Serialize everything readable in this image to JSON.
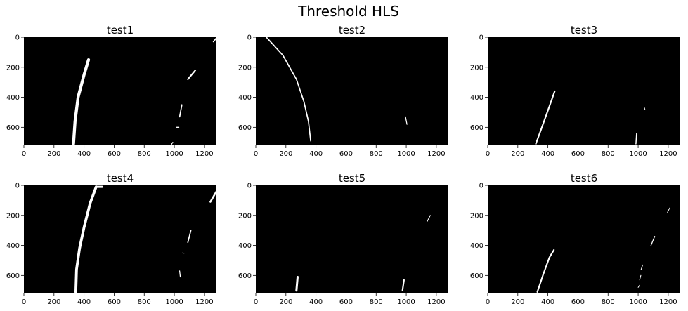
{
  "figure": {
    "suptitle": "Threshold HLS",
    "colors": {
      "background": "#000000",
      "foreground": "#ffffff",
      "text": "#000000"
    },
    "axes_common": {
      "xlim": [
        0,
        1280
      ],
      "ylim": [
        720,
        0
      ],
      "x_ticks": [
        0,
        200,
        400,
        600,
        800,
        1000,
        1200
      ],
      "y_ticks": [
        0,
        200,
        400,
        600
      ]
    },
    "panels": [
      {
        "title": "test1",
        "blobs": [
          {
            "shape": "stroke",
            "width": 20,
            "points": [
              [
                330,
                710
              ],
              [
                340,
                560
              ],
              [
                360,
                400
              ],
              [
                400,
                250
              ],
              [
                430,
                150
              ]
            ]
          },
          {
            "shape": "stroke",
            "width": 10,
            "points": [
              [
                1090,
                280
              ],
              [
                1140,
                220
              ]
            ]
          },
          {
            "shape": "stroke",
            "width": 8,
            "points": [
              [
                1050,
                450
              ],
              [
                1035,
                530
              ]
            ]
          },
          {
            "shape": "stroke",
            "width": 6,
            "points": [
              [
                1015,
                600
              ],
              [
                1030,
                600
              ]
            ]
          },
          {
            "shape": "stroke",
            "width": 6,
            "points": [
              [
                980,
                715
              ],
              [
                990,
                700
              ]
            ]
          },
          {
            "shape": "stroke",
            "width": 8,
            "points": [
              [
                1260,
                30
              ],
              [
                1280,
                5
              ]
            ]
          }
        ]
      },
      {
        "title": "test2",
        "blobs": [
          {
            "shape": "stroke",
            "width": 8,
            "points": [
              [
                70,
                0
              ],
              [
                180,
                120
              ],
              [
                270,
                280
              ],
              [
                320,
                430
              ],
              [
                350,
                560
              ],
              [
                365,
                690
              ]
            ]
          },
          {
            "shape": "stroke",
            "width": 6,
            "points": [
              [
                995,
                530
              ],
              [
                1005,
                580
              ]
            ]
          }
        ]
      },
      {
        "title": "test3",
        "blobs": [
          {
            "shape": "stroke",
            "width": 10,
            "points": [
              [
                320,
                710
              ],
              [
                360,
                600
              ],
              [
                410,
                460
              ],
              [
                445,
                360
              ]
            ]
          },
          {
            "shape": "stroke",
            "width": 7,
            "points": [
              [
                990,
                640
              ],
              [
                985,
                710
              ]
            ]
          },
          {
            "shape": "stroke",
            "width": 4,
            "points": [
              [
                1040,
                465
              ],
              [
                1045,
                480
              ]
            ]
          }
        ]
      },
      {
        "title": "test4",
        "blobs": [
          {
            "shape": "stroke",
            "width": 18,
            "points": [
              [
                345,
                710
              ],
              [
                350,
                560
              ],
              [
                370,
                420
              ],
              [
                400,
                280
              ],
              [
                440,
                120
              ],
              [
                480,
                10
              ]
            ]
          },
          {
            "shape": "stroke",
            "width": 14,
            "points": [
              [
                480,
                10
              ],
              [
                520,
                10
              ]
            ]
          },
          {
            "shape": "stroke",
            "width": 12,
            "points": [
              [
                1240,
                110
              ],
              [
                1280,
                40
              ]
            ]
          },
          {
            "shape": "stroke",
            "width": 8,
            "points": [
              [
                1090,
                380
              ],
              [
                1110,
                300
              ]
            ]
          },
          {
            "shape": "stroke",
            "width": 6,
            "points": [
              [
                1035,
                570
              ],
              [
                1040,
                610
              ]
            ]
          },
          {
            "shape": "stroke",
            "width": 4,
            "points": [
              [
                1055,
                450
              ],
              [
                1065,
                452
              ]
            ]
          }
        ]
      },
      {
        "title": "test5",
        "blobs": [
          {
            "shape": "stroke",
            "width": 14,
            "points": [
              [
                270,
                700
              ],
              [
                278,
                610
              ]
            ]
          },
          {
            "shape": "stroke",
            "width": 10,
            "points": [
              [
                975,
                700
              ],
              [
                985,
                630
              ]
            ]
          },
          {
            "shape": "stroke",
            "width": 5,
            "points": [
              [
                1140,
                240
              ],
              [
                1160,
                200
              ]
            ]
          }
        ]
      },
      {
        "title": "test6",
        "blobs": [
          {
            "shape": "stroke",
            "width": 10,
            "points": [
              [
                330,
                710
              ],
              [
                370,
                590
              ],
              [
                410,
                480
              ],
              [
                440,
                430
              ]
            ]
          },
          {
            "shape": "stroke",
            "width": 6,
            "points": [
              [
                1085,
                400
              ],
              [
                1110,
                340
              ]
            ]
          },
          {
            "shape": "stroke",
            "width": 5,
            "points": [
              [
                1020,
                560
              ],
              [
                1030,
                530
              ]
            ]
          },
          {
            "shape": "stroke",
            "width": 5,
            "points": [
              [
                1010,
                630
              ],
              [
                1018,
                600
              ]
            ]
          },
          {
            "shape": "stroke",
            "width": 4,
            "points": [
              [
                1195,
                180
              ],
              [
                1210,
                150
              ]
            ]
          },
          {
            "shape": "stroke",
            "width": 4,
            "points": [
              [
                1000,
                680
              ],
              [
                1010,
                665
              ]
            ]
          }
        ]
      }
    ]
  }
}
